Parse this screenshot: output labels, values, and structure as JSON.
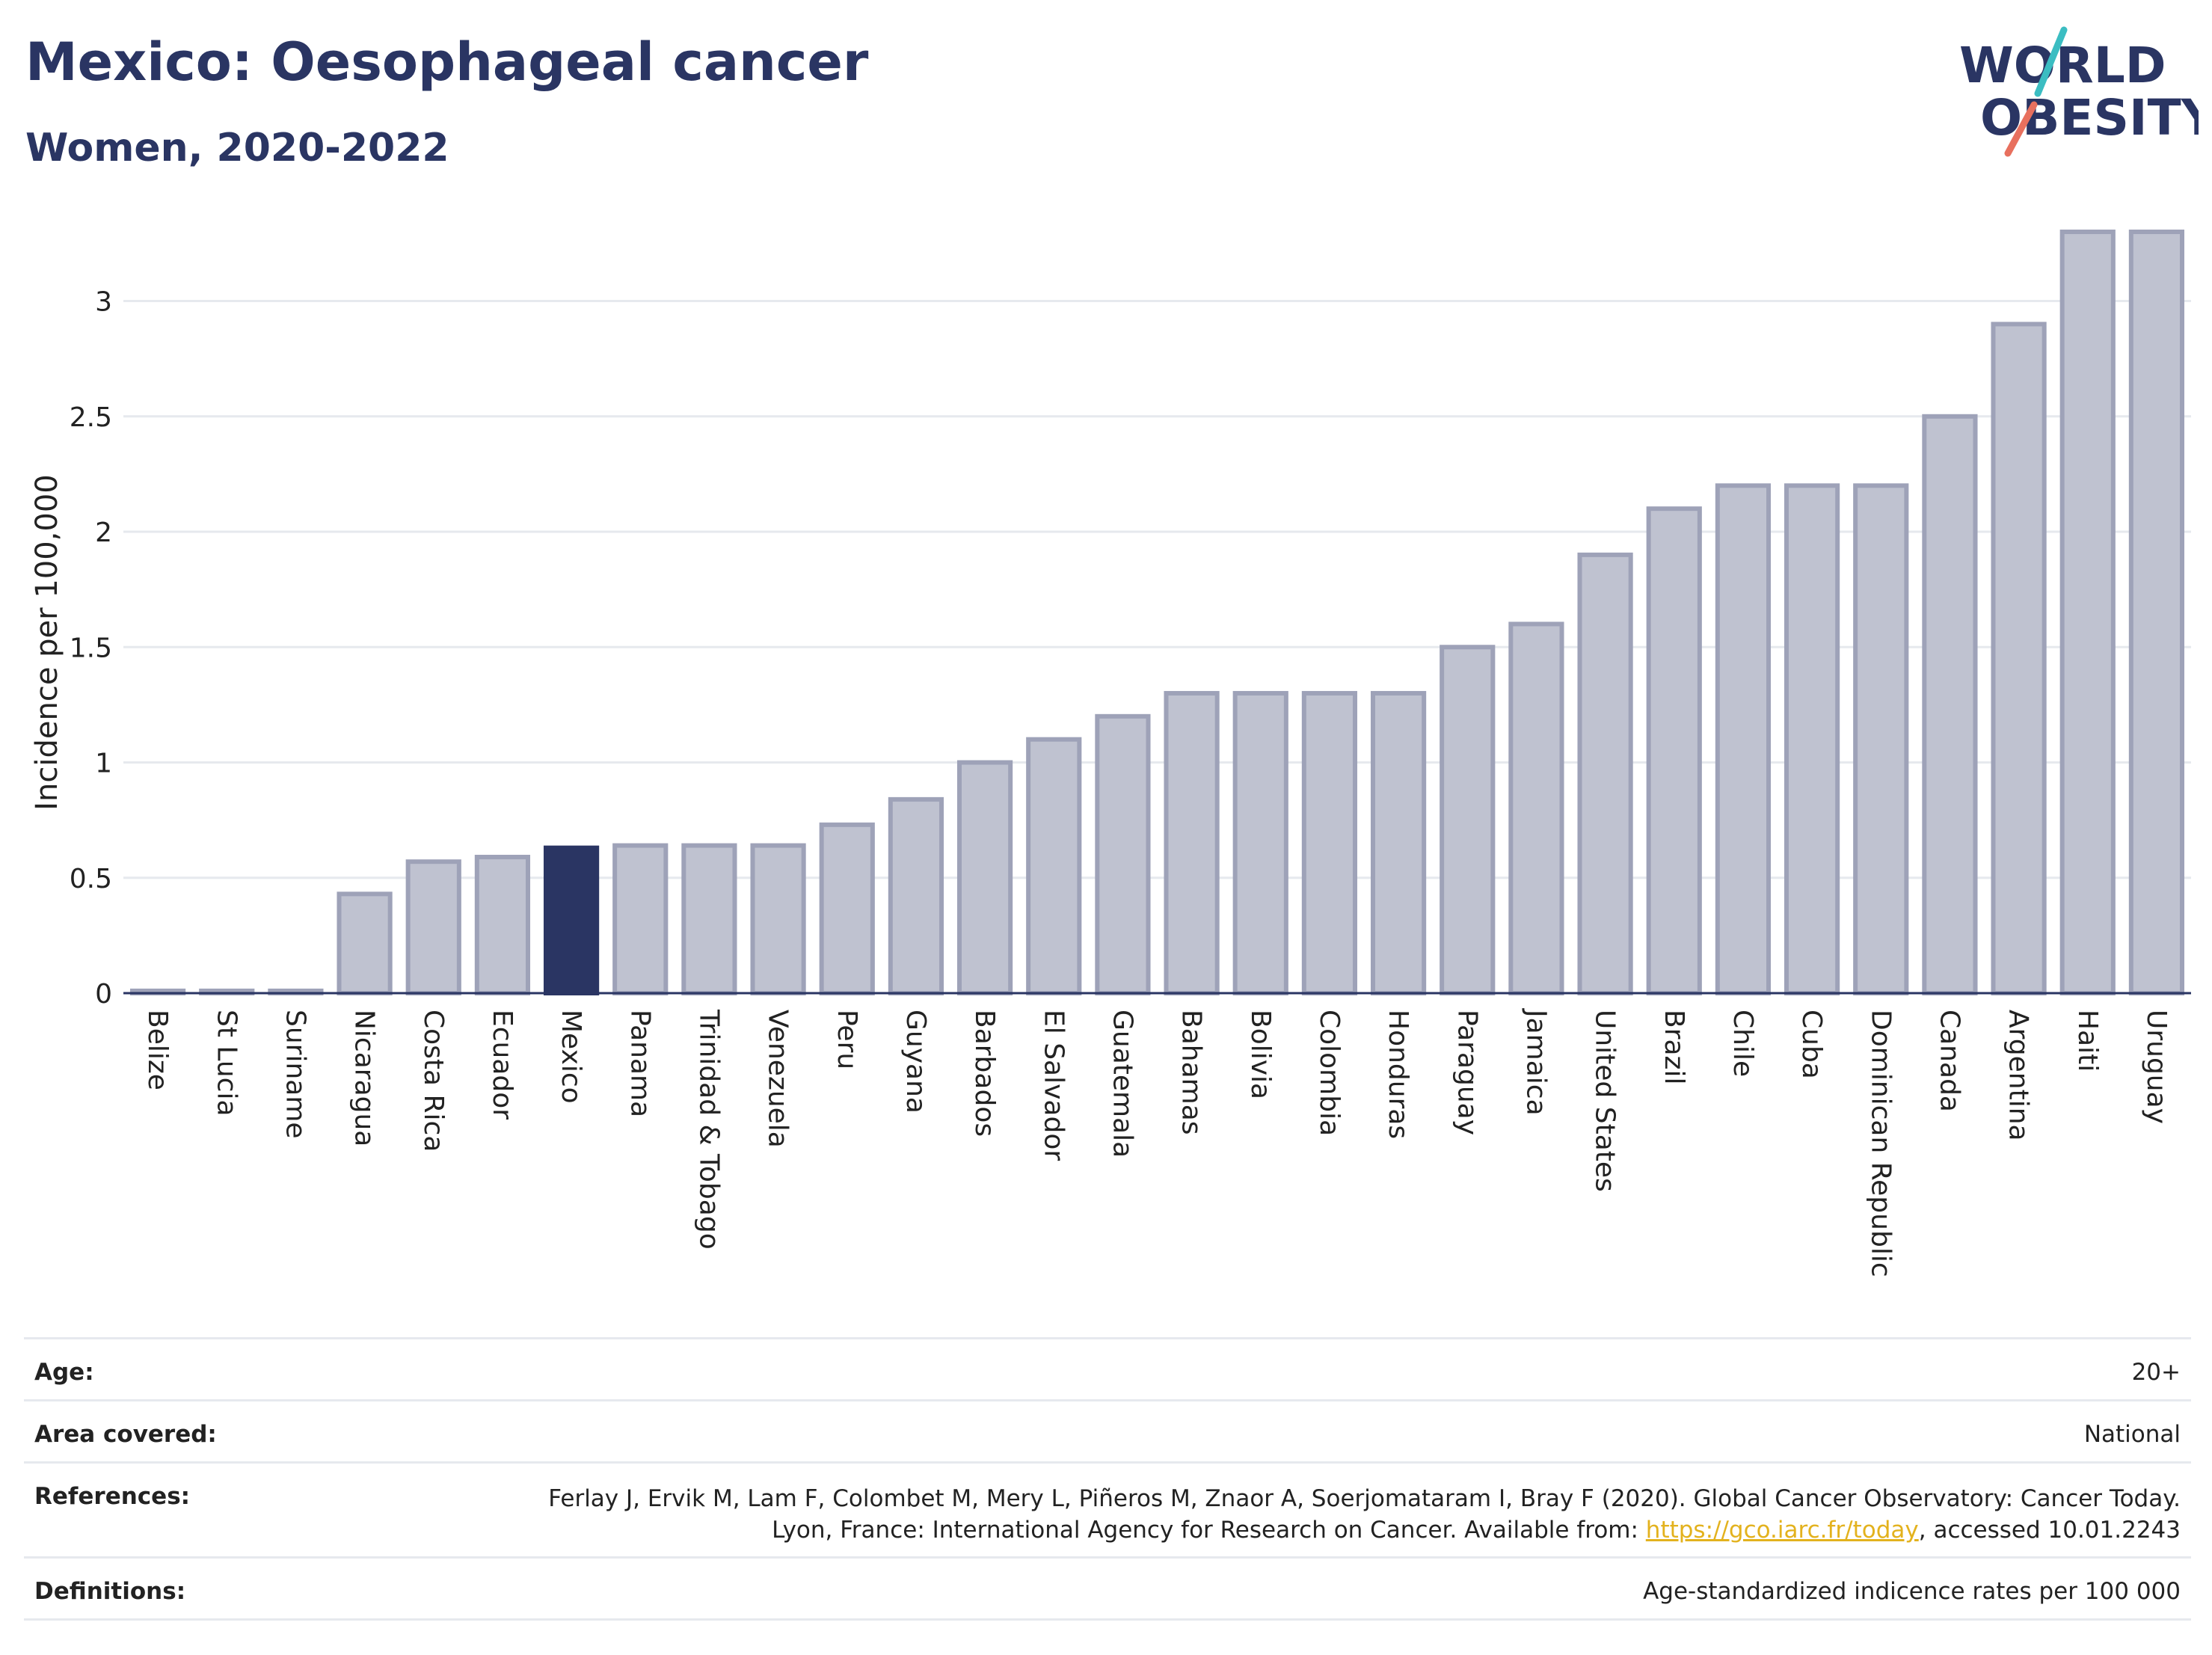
{
  "header": {
    "title": "Mexico: Oesophageal cancer",
    "subtitle": "Women, 2020-2022",
    "logo_line1": "WORLD",
    "logo_line2": "OBESITY"
  },
  "colors": {
    "highlight": "#2a3563",
    "bar_fill": "#bfc2d0",
    "bar_stroke": "#9ea2b8",
    "text_dark": "#2a3563",
    "link": "#e3b21e",
    "logo_teal": "#3bbdc2",
    "logo_coral": "#e8705e"
  },
  "chart_data": {
    "type": "bar",
    "ylabel": "Incidence per 100,000",
    "ylim": [
      0,
      3.3
    ],
    "yticks": [
      0,
      0.5,
      1,
      1.5,
      2,
      2.5,
      3
    ],
    "ytick_labels": [
      "0",
      "0.5",
      "1",
      "1.5",
      "2",
      "2.5",
      "3"
    ],
    "grid": true,
    "highlight": "Mexico",
    "categories": [
      "Belize",
      "St Lucia",
      "Suriname",
      "Nicaragua",
      "Costa Rica",
      "Ecuador",
      "Mexico",
      "Panama",
      "Trinidad & Tobago",
      "Venezuela",
      "Peru",
      "Guyana",
      "Barbados",
      "El Salvador",
      "Guatemala",
      "Bahamas",
      "Bolivia",
      "Colombia",
      "Honduras",
      "Paraguay",
      "Jamaica",
      "United States",
      "Brazil",
      "Chile",
      "Cuba",
      "Dominican Republic",
      "Canada",
      "Argentina",
      "Haiti",
      "Uruguay"
    ],
    "values": [
      0.01,
      0.01,
      0.01,
      0.43,
      0.57,
      0.59,
      0.63,
      0.64,
      0.64,
      0.64,
      0.73,
      0.84,
      1.0,
      1.1,
      1.2,
      1.3,
      1.3,
      1.3,
      1.3,
      1.5,
      1.6,
      1.9,
      2.1,
      2.2,
      2.2,
      2.2,
      2.5,
      2.9,
      3.3,
      3.3
    ]
  },
  "meta": {
    "age_label": "Age:",
    "age_value": "20+",
    "area_label": "Area covered:",
    "area_value": "National",
    "references_label": "References:",
    "references_text_1": "Ferlay J, Ervik M, Lam F, Colombet M, Mery L, Piñeros M, Znaor A, Soerjomataram I, Bray F (2020). Global Cancer Observatory: Cancer Today. Lyon, France: International Agency for Research on Cancer. Available from: ",
    "references_link": "https://gco.iarc.fr/today",
    "references_text_2": ", accessed 10.01.2243",
    "definitions_label": "Definitions:",
    "definitions_value": "Age-standardized indicence rates per 100 000"
  }
}
